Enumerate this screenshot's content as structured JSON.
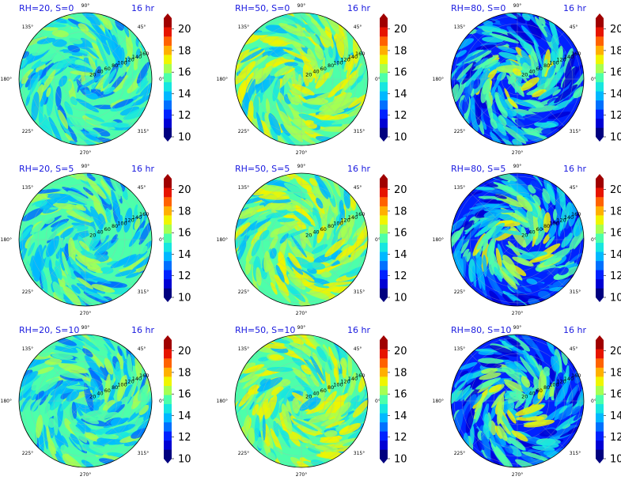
{
  "colors": {
    "title": "#1a1adf",
    "levels": [
      "#00007f",
      "#0000d4",
      "#0022ff",
      "#0070ff",
      "#00b8ff",
      "#17e6e0",
      "#4dffaa",
      "#a6ff52",
      "#f0f500",
      "#ffb000",
      "#ff6200",
      "#e61400",
      "#a00000"
    ]
  },
  "chart_data": [
    {
      "type": "heatmap",
      "title": "RH=20, S=0",
      "time_label": "16 hr",
      "rh": 20,
      "s": 0
    },
    {
      "type": "heatmap",
      "title": "RH=50, S=0",
      "time_label": "16 hr",
      "rh": 50,
      "s": 0
    },
    {
      "type": "heatmap",
      "title": "RH=80, S=0",
      "time_label": "16 hr",
      "rh": 80,
      "s": 0
    },
    {
      "type": "heatmap",
      "title": "RH=20, S=5",
      "time_label": "16 hr",
      "rh": 20,
      "s": 5
    },
    {
      "type": "heatmap",
      "title": "RH=50, S=5",
      "time_label": "16 hr",
      "rh": 50,
      "s": 5
    },
    {
      "type": "heatmap",
      "title": "RH=80, S=5",
      "time_label": "16 hr",
      "rh": 80,
      "s": 5
    },
    {
      "type": "heatmap",
      "title": "RH=20, S=10",
      "time_label": "16 hr",
      "rh": 20,
      "s": 10
    },
    {
      "type": "heatmap",
      "title": "RH=50, S=10",
      "time_label": "16 hr",
      "rh": 50,
      "s": 10
    },
    {
      "type": "heatmap",
      "title": "RH=80, S=10",
      "time_label": "16 hr",
      "rh": 80,
      "s": 10
    }
  ],
  "angle_labels": [
    "0°",
    "45°",
    "90°",
    "135°",
    "180°",
    "225°",
    "270°",
    "315°"
  ],
  "radial_labels": [
    "20",
    "40",
    "60",
    "80",
    "100",
    "120",
    "140",
    "160"
  ],
  "colorbar": {
    "ticks": [
      "10",
      "12",
      "14",
      "16",
      "18",
      "20"
    ],
    "min": 10,
    "max": 21
  }
}
